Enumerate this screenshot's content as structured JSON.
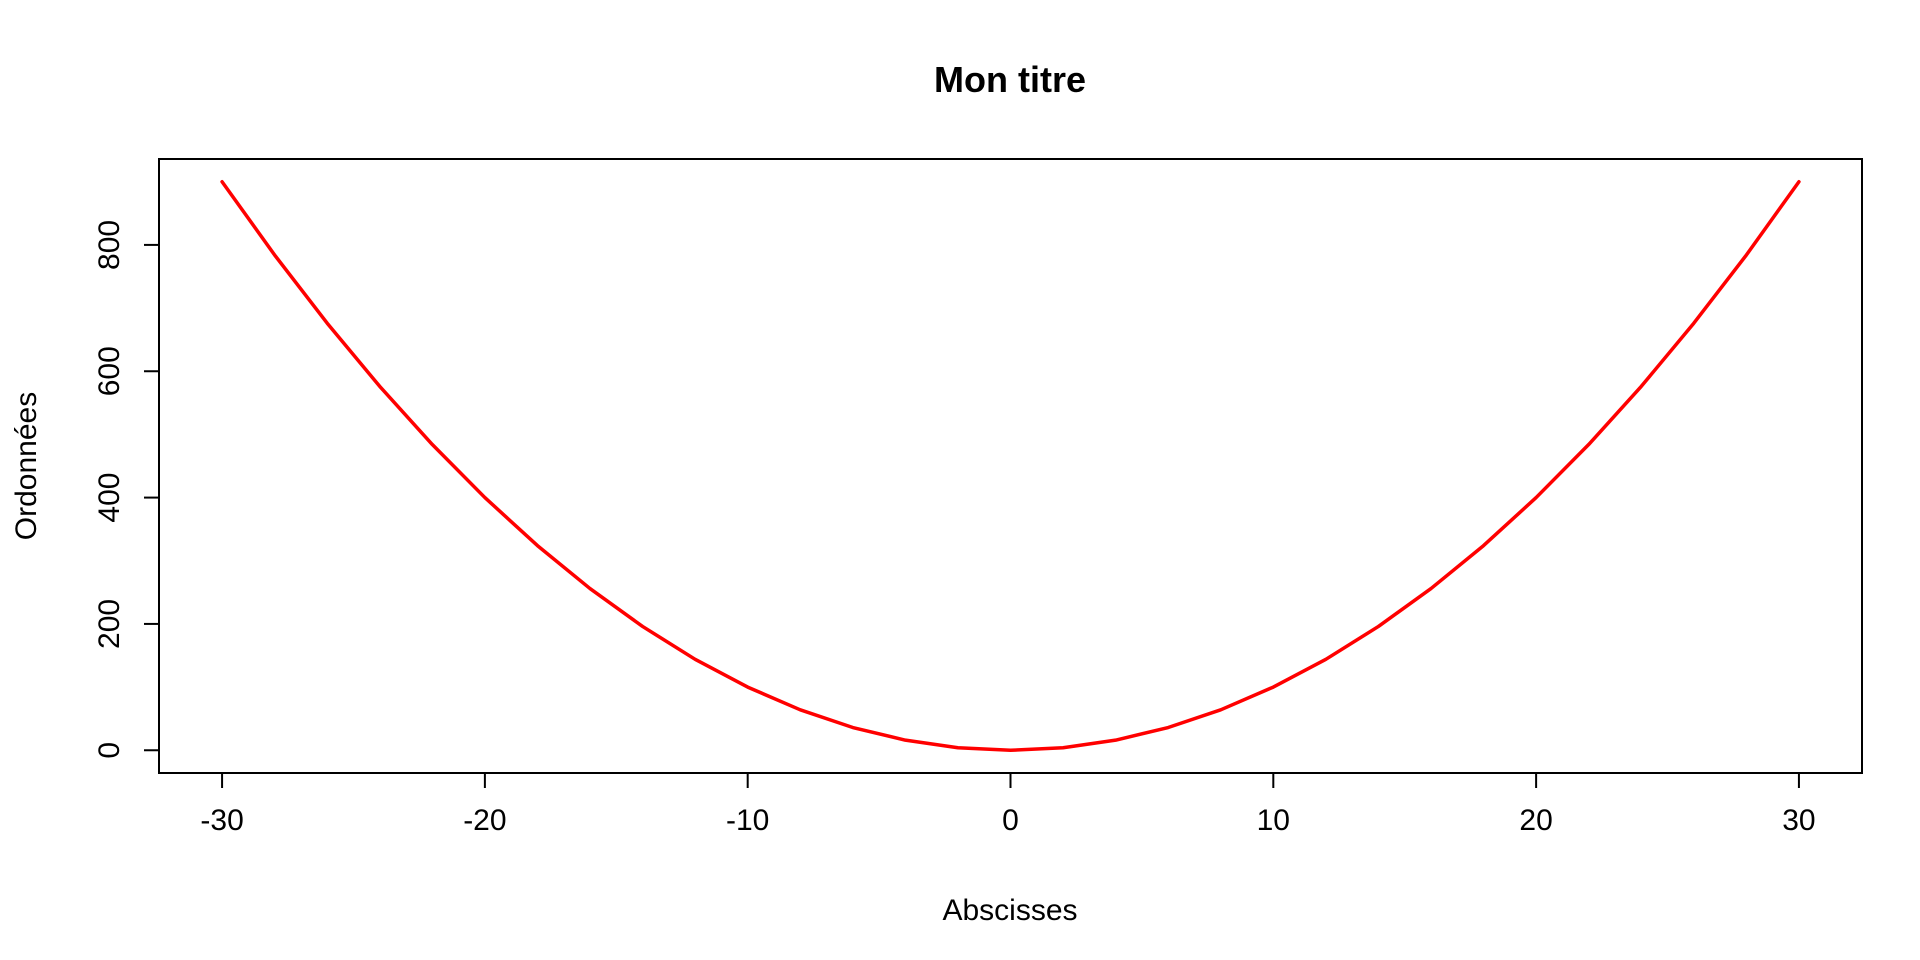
{
  "chart_data": {
    "type": "line",
    "title": "Mon titre",
    "xlabel": "Abscisses",
    "ylabel": "Ordonnées",
    "xlim": [
      -32.4,
      32.4
    ],
    "ylim": [
      -36,
      936
    ],
    "x_ticks": [
      -30,
      -20,
      -10,
      0,
      10,
      20,
      30
    ],
    "x_tick_labels": [
      "-30",
      "-20",
      "-10",
      "0",
      "10",
      "20",
      "30"
    ],
    "y_ticks": [
      0,
      200,
      400,
      600,
      800
    ],
    "y_tick_labels": [
      "0",
      "200",
      "400",
      "600",
      "800"
    ],
    "grid": false,
    "legend": "none",
    "series": [
      {
        "color": "#ff0000",
        "x": [
          -30,
          -28,
          -26,
          -24,
          -22,
          -20,
          -18,
          -16,
          -14,
          -12,
          -10,
          -8,
          -6,
          -4,
          -2,
          0,
          2,
          4,
          6,
          8,
          10,
          12,
          14,
          16,
          18,
          20,
          22,
          24,
          26,
          28,
          30
        ],
        "y": [
          900,
          784,
          676,
          576,
          484,
          400,
          324,
          256,
          196,
          144,
          100,
          64,
          36,
          16,
          4,
          0,
          4,
          16,
          36,
          64,
          100,
          144,
          196,
          256,
          324,
          400,
          484,
          576,
          676,
          784,
          900
        ]
      }
    ]
  }
}
